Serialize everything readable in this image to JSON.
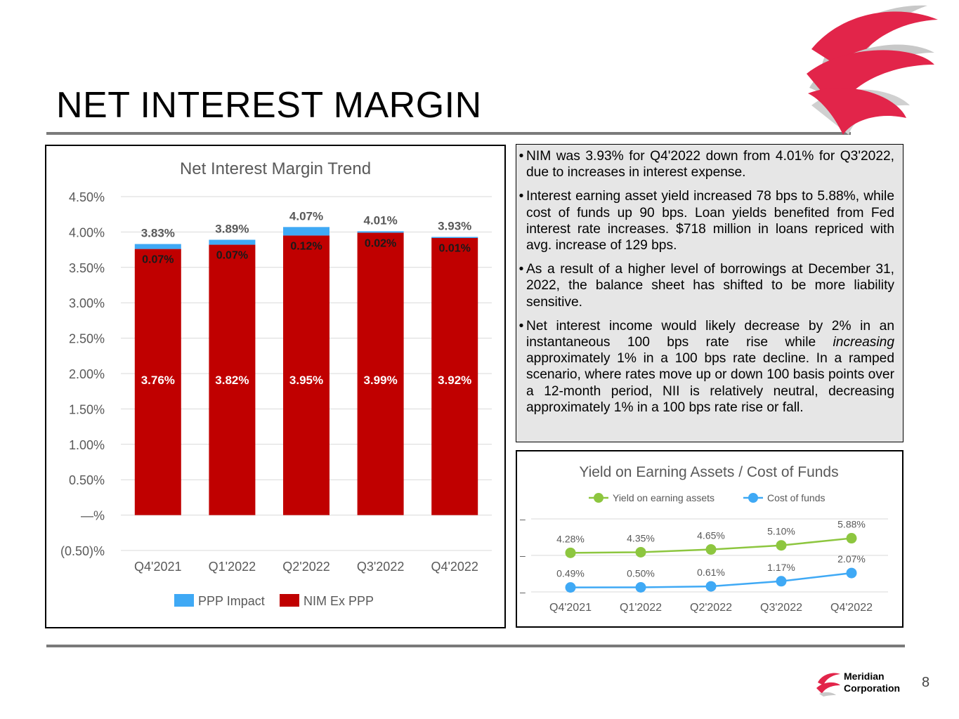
{
  "slide": {
    "title": "NET INTEREST MARGIN",
    "page_number": "8",
    "brand_line1": "Meridian",
    "brand_line2": "Corporation"
  },
  "bullets": [
    "NIM was 3.93% for Q4'2022 down from 4.01% for Q3'2022, due to increases in interest expense.",
    "Interest earning asset yield increased 78 bps to 5.88%, while cost of funds up 90 bps. Loan yields benefited from Fed interest rate increases. $718 million in loans repriced with avg. increase of 129 bps.",
    "As a result of a higher level of borrowings at December 31, 2022, the balance sheet has shifted to be more liability sensitive.",
    {
      "before": "Net interest income would likely decrease by 2% in an instantaneous 100 bps rate rise while ",
      "emphasis": "increasing",
      "after": " approximately 1% in a 100 bps rate decline.  In a ramped scenario, where rates move up or down 100 basis points over a 12-month period, NII is relatively neutral, decreasing approximately 1% in a 100 bps rate rise or fall."
    }
  ],
  "chart_data": [
    {
      "type": "bar",
      "stacked": true,
      "title": "Net Interest Margin Trend",
      "categories": [
        "Q4'2021",
        "Q1'2022",
        "Q2'2022",
        "Q3'2022",
        "Q4'2022"
      ],
      "series": [
        {
          "name": "NIM Ex PPP",
          "values": [
            3.76,
            3.82,
            3.95,
            3.99,
            3.92
          ],
          "labels": [
            "3.76%",
            "3.82%",
            "3.95%",
            "3.99%",
            "3.92%"
          ],
          "color": "#c00000"
        },
        {
          "name": "PPP Impact",
          "values": [
            0.07,
            0.07,
            0.12,
            0.02,
            0.01
          ],
          "labels": [
            "0.07%",
            "0.07%",
            "0.12%",
            "0.02%",
            "0.01%"
          ],
          "color": "#3fa9f5"
        }
      ],
      "totals": [
        "3.83%",
        "3.89%",
        "4.07%",
        "4.01%",
        "3.93%"
      ],
      "yticks": [
        -0.5,
        0,
        0.5,
        1,
        1.5,
        2,
        2.5,
        3,
        3.5,
        4,
        4.5
      ],
      "ytick_labels": [
        "(0.50)%",
        "—%",
        "0.50%",
        "1.00%",
        "1.50%",
        "2.00%",
        "2.50%",
        "3.00%",
        "3.50%",
        "4.00%",
        "4.50%"
      ],
      "ylim": [
        -0.5,
        4.5
      ],
      "grid": true,
      "legend_position": "bottom",
      "legend": [
        "PPP Impact",
        "NIM Ex PPP"
      ]
    },
    {
      "type": "line",
      "title": "Yield on Earning Assets  / Cost of Funds",
      "categories": [
        "Q4'2021",
        "Q1'2022",
        "Q2'2022",
        "Q3'2022",
        "Q4'2022"
      ],
      "series": [
        {
          "name": "Yield on earning assets",
          "values": [
            4.28,
            4.35,
            4.65,
            5.1,
            5.88
          ],
          "labels": [
            "4.28%",
            "4.35%",
            "4.65%",
            "5.10%",
            "5.88%"
          ],
          "color": "#8dc63f"
        },
        {
          "name": "Cost of funds",
          "values": [
            0.49,
            0.5,
            0.61,
            1.17,
            2.07
          ],
          "labels": [
            "0.49%",
            "0.50%",
            "0.61%",
            "1.17%",
            "2.07%"
          ],
          "color": "#3fa9f5"
        }
      ],
      "yticks": [
        0,
        4,
        8
      ],
      "ytick_labels": [
        "–",
        "–",
        "–"
      ],
      "ylim": [
        0,
        8
      ],
      "grid": true,
      "legend_position": "top"
    }
  ]
}
